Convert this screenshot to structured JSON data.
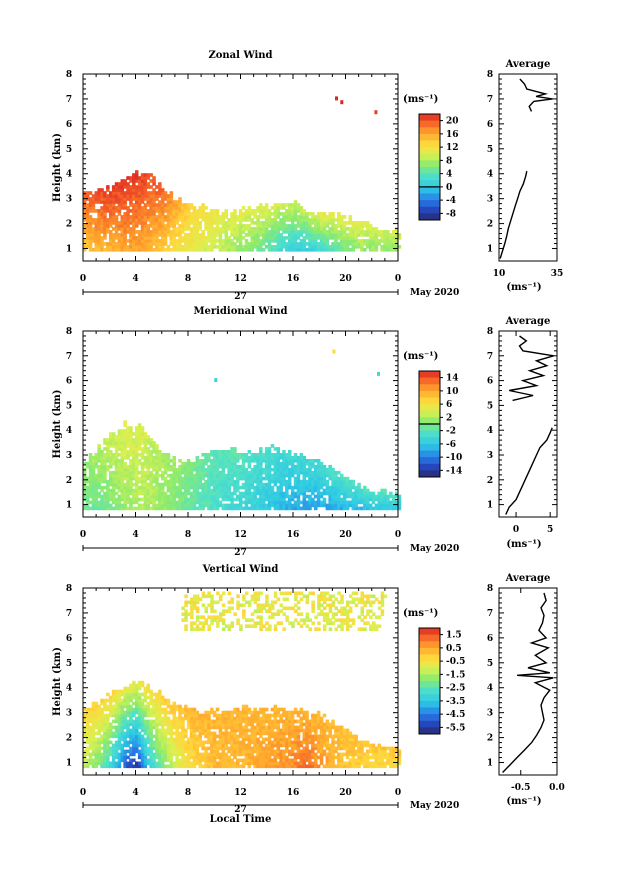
{
  "figure": {
    "month_label": "May 2020",
    "day_label": "27",
    "xlabel": "Local Time",
    "x_ticks": [
      "0",
      "4",
      "8",
      "12",
      "16",
      "20",
      "0"
    ],
    "y_ticks": [
      "1",
      "2",
      "3",
      "4",
      "5",
      "6",
      "7",
      "8"
    ],
    "ylabel": "Height (km)",
    "avg_title": "Average",
    "unit_label": "(ms⁻¹)"
  },
  "chart_data": [
    {
      "type": "heatmap",
      "title": "Zonal Wind",
      "xlabel": "",
      "ylabel": "Height (km)",
      "xlim": [
        0,
        24
      ],
      "ylim": [
        0.5,
        8
      ],
      "colorbar": {
        "min": -10,
        "max": 22,
        "ticks": [
          "20",
          "16",
          "12",
          "8",
          "4",
          "0",
          "-4",
          "-8"
        ],
        "zero_line": 0
      },
      "top_height_km": [
        3.0,
        3.1,
        3.3,
        3.7,
        3.9,
        3.8,
        3.3,
        2.8,
        2.7,
        2.5,
        2.3,
        2.3,
        2.4,
        2.5,
        2.5,
        2.7,
        2.7,
        2.4,
        2.2,
        2.2,
        2.1,
        1.9,
        1.7,
        1.5
      ],
      "low_height_km": [
        0.9,
        0.9,
        0.9,
        0.9,
        0.9,
        0.9,
        0.9,
        0.9,
        0.9,
        0.9,
        0.9,
        0.9,
        0.9,
        0.9,
        0.9,
        0.9,
        0.9,
        0.9,
        0.9,
        0.9,
        0.9,
        0.9,
        0.9,
        0.9
      ],
      "surface_value": [
        14,
        15,
        15,
        16,
        16,
        15,
        14,
        12,
        11,
        10,
        9,
        8,
        7,
        6,
        4,
        2,
        1,
        1,
        2,
        4,
        6,
        7,
        7,
        7
      ],
      "top_value": [
        19,
        20,
        21,
        21,
        21,
        20,
        19,
        16,
        13,
        12,
        11,
        10,
        10,
        10,
        10,
        9,
        9,
        9,
        10,
        10,
        10,
        10,
        9,
        9
      ],
      "isolated_points": [
        {
          "t": 19.2,
          "h": 7.0,
          "v": 22
        },
        {
          "t": 19.6,
          "h": 6.85,
          "v": 22
        },
        {
          "t": 22.2,
          "h": 6.45,
          "v": 21
        }
      ],
      "average_profile": {
        "title": "Average",
        "xlabel": "(ms⁻¹)",
        "x_ticks": [
          "10",
          "35"
        ],
        "xlim": [
          10,
          35
        ],
        "heights_km": [
          0.6,
          0.9,
          1.2,
          1.5,
          1.8,
          2.1,
          2.4,
          2.7,
          3.0,
          3.3,
          3.6,
          3.9,
          4.1,
          6.5,
          6.7,
          6.9,
          7.0,
          7.1,
          7.2,
          7.4,
          7.6,
          7.8
        ],
        "values": [
          10.5,
          11.5,
          12.5,
          13.3,
          14.0,
          15.0,
          16.0,
          17.0,
          18.0,
          19.0,
          20.5,
          21.5,
          22.0,
          24.0,
          23.0,
          25.0,
          33.0,
          26.0,
          30.0,
          22.0,
          21.0,
          19.0
        ]
      }
    },
    {
      "type": "heatmap",
      "title": "Meridional Wind",
      "xlabel": "",
      "ylabel": "Height (km)",
      "xlim": [
        0,
        24
      ],
      "ylim": [
        0.5,
        8
      ],
      "colorbar": {
        "min": -16,
        "max": 16,
        "ticks": [
          "14",
          "10",
          "6",
          "2",
          "-2",
          "-6",
          "-10",
          "-14"
        ],
        "zero_line": 0
      },
      "top_height_km": [
        2.6,
        3.1,
        3.6,
        4.0,
        4.0,
        3.6,
        3.0,
        2.7,
        2.6,
        2.8,
        3.1,
        3.0,
        2.9,
        3.0,
        3.2,
        3.1,
        2.8,
        2.7,
        2.5,
        2.2,
        1.9,
        1.6,
        1.4,
        1.3
      ],
      "low_height_km": [
        0.8,
        0.8,
        0.8,
        0.8,
        0.8,
        0.8,
        0.8,
        0.8,
        0.8,
        0.8,
        0.8,
        0.8,
        0.8,
        0.8,
        0.8,
        0.8,
        0.8,
        0.8,
        0.8,
        0.8,
        0.8,
        0.8,
        0.8,
        0.8
      ],
      "surface_value": [
        -1,
        -1,
        0,
        1,
        2,
        2,
        1,
        0,
        -1,
        -2,
        -3,
        -4,
        -4,
        -5,
        -6,
        -7,
        -8,
        -8,
        -8,
        -8,
        -7,
        -7,
        -6,
        -6
      ],
      "top_value": [
        1,
        2,
        3,
        4,
        4,
        3,
        2,
        1,
        0,
        -1,
        -2,
        -2,
        -2,
        -3,
        -3,
        -4,
        -4,
        -4,
        -4,
        -3,
        -3,
        -3,
        -3,
        -3
      ],
      "isolated_points": [
        {
          "t": 19.0,
          "h": 7.15,
          "v": 6
        },
        {
          "t": 22.4,
          "h": 6.25,
          "v": -4
        },
        {
          "t": 10.0,
          "h": 6.0,
          "v": -5
        }
      ],
      "average_profile": {
        "title": "Average",
        "xlabel": "(ms⁻¹)",
        "x_ticks": [
          "0",
          "5"
        ],
        "xlim": [
          -2.5,
          6
        ],
        "heights_km": [
          0.6,
          0.9,
          1.2,
          1.5,
          1.8,
          2.1,
          2.4,
          2.7,
          3.0,
          3.3,
          3.6,
          3.9,
          4.1,
          5.2,
          5.4,
          5.6,
          5.8,
          6.0,
          6.2,
          6.4,
          6.6,
          6.8,
          7.0,
          7.2,
          7.4,
          7.6,
          7.8
        ],
        "values": [
          -1.5,
          -1.0,
          0.0,
          0.5,
          1.0,
          1.5,
          2.0,
          2.5,
          3.0,
          3.5,
          4.5,
          5.0,
          5.3,
          -0.5,
          2.5,
          -1.0,
          3.0,
          1.0,
          4.0,
          2.0,
          4.5,
          3.0,
          5.5,
          1.0,
          0.5,
          1.5,
          0.5
        ]
      }
    },
    {
      "type": "heatmap",
      "title": "Vertical Wind",
      "xlabel": "Local Time",
      "ylabel": "Height (km)",
      "xlim": [
        0,
        24
      ],
      "ylim": [
        0.5,
        8
      ],
      "colorbar": {
        "min": -6.0,
        "max": 2.0,
        "ticks": [
          "1.5",
          "0.5",
          "-0.5",
          "-1.5",
          "-2.5",
          "-3.5",
          "-4.5",
          "-5.5"
        ]
      },
      "top_height_km": [
        3.0,
        3.3,
        3.6,
        3.9,
        4.0,
        3.8,
        3.5,
        3.1,
        2.9,
        2.8,
        2.9,
        3.0,
        3.0,
        3.0,
        3.0,
        3.0,
        2.9,
        2.8,
        2.7,
        2.5,
        2.1,
        1.7,
        1.5,
        1.4
      ],
      "low_height_km": [
        0.8,
        0.8,
        0.8,
        0.8,
        0.8,
        0.8,
        0.8,
        0.8,
        0.8,
        0.8,
        0.8,
        0.8,
        0.8,
        0.8,
        0.8,
        0.8,
        0.8,
        0.8,
        0.8,
        0.8,
        0.8,
        0.8,
        0.8,
        0.8
      ],
      "surface_value": [
        -1.2,
        -2.0,
        -3.0,
        -4.8,
        -5.6,
        -3.2,
        -2.0,
        -1.0,
        -0.5,
        0.0,
        0.2,
        0.3,
        0.3,
        0.4,
        0.6,
        0.7,
        0.9,
        1.3,
        0.6,
        0.3,
        0.0,
        -0.2,
        -0.3,
        -0.4
      ],
      "top_value": [
        -0.3,
        -0.3,
        -0.3,
        -0.8,
        -1.0,
        -0.5,
        -0.2,
        0.0,
        0.2,
        0.3,
        0.3,
        0.3,
        0.3,
        0.3,
        0.3,
        0.3,
        0.3,
        0.3,
        0.3,
        0.2,
        0.1,
        0.0,
        0.0,
        0.0
      ],
      "upper_band": {
        "from_hour": 7.5,
        "to_hour": 23,
        "bottom_km": 6.3,
        "top_km": 7.8,
        "value": -1.0
      },
      "average_profile": {
        "title": "Average",
        "xlabel": "(ms⁻¹)",
        "x_ticks": [
          "-0.5",
          "0.0"
        ],
        "xlim": [
          -0.8,
          0.0
        ],
        "heights_km": [
          0.6,
          0.9,
          1.2,
          1.5,
          1.8,
          2.1,
          2.4,
          2.7,
          3.0,
          3.3,
          3.6,
          3.9,
          4.2,
          4.4,
          4.5,
          4.6,
          4.8,
          5.0,
          5.3,
          5.6,
          5.8,
          6.0,
          6.3,
          6.6,
          6.9,
          7.2,
          7.5,
          7.8
        ],
        "values": [
          -0.75,
          -0.65,
          -0.55,
          -0.45,
          -0.35,
          -0.28,
          -0.22,
          -0.18,
          -0.2,
          -0.22,
          -0.18,
          -0.1,
          -0.3,
          -0.05,
          -0.55,
          -0.1,
          -0.4,
          -0.15,
          -0.3,
          -0.12,
          -0.35,
          -0.15,
          -0.25,
          -0.2,
          -0.18,
          -0.22,
          -0.15,
          -0.18
        ]
      }
    }
  ]
}
